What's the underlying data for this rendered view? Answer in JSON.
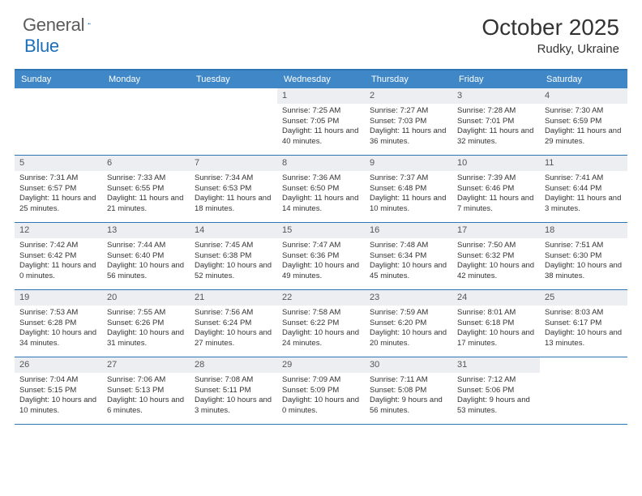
{
  "logo": {
    "text1": "General",
    "text2": "Blue"
  },
  "title": "October 2025",
  "location": "Rudky, Ukraine",
  "colors": {
    "header_bg": "#3f87c7",
    "header_border": "#2d76b6",
    "daynum_bg": "#eceef1",
    "text": "#333333",
    "logo_gray": "#5b5b5b",
    "logo_blue": "#1d6fb8"
  },
  "day_names": [
    "Sunday",
    "Monday",
    "Tuesday",
    "Wednesday",
    "Thursday",
    "Friday",
    "Saturday"
  ],
  "weeks": [
    [
      {
        "empty": true
      },
      {
        "empty": true
      },
      {
        "empty": true
      },
      {
        "day": "1",
        "sunrise": "7:25 AM",
        "sunset": "7:05 PM",
        "daylight": "11 hours and 40 minutes."
      },
      {
        "day": "2",
        "sunrise": "7:27 AM",
        "sunset": "7:03 PM",
        "daylight": "11 hours and 36 minutes."
      },
      {
        "day": "3",
        "sunrise": "7:28 AM",
        "sunset": "7:01 PM",
        "daylight": "11 hours and 32 minutes."
      },
      {
        "day": "4",
        "sunrise": "7:30 AM",
        "sunset": "6:59 PM",
        "daylight": "11 hours and 29 minutes."
      }
    ],
    [
      {
        "day": "5",
        "sunrise": "7:31 AM",
        "sunset": "6:57 PM",
        "daylight": "11 hours and 25 minutes."
      },
      {
        "day": "6",
        "sunrise": "7:33 AM",
        "sunset": "6:55 PM",
        "daylight": "11 hours and 21 minutes."
      },
      {
        "day": "7",
        "sunrise": "7:34 AM",
        "sunset": "6:53 PM",
        "daylight": "11 hours and 18 minutes."
      },
      {
        "day": "8",
        "sunrise": "7:36 AM",
        "sunset": "6:50 PM",
        "daylight": "11 hours and 14 minutes."
      },
      {
        "day": "9",
        "sunrise": "7:37 AM",
        "sunset": "6:48 PM",
        "daylight": "11 hours and 10 minutes."
      },
      {
        "day": "10",
        "sunrise": "7:39 AM",
        "sunset": "6:46 PM",
        "daylight": "11 hours and 7 minutes."
      },
      {
        "day": "11",
        "sunrise": "7:41 AM",
        "sunset": "6:44 PM",
        "daylight": "11 hours and 3 minutes."
      }
    ],
    [
      {
        "day": "12",
        "sunrise": "7:42 AM",
        "sunset": "6:42 PM",
        "daylight": "11 hours and 0 minutes."
      },
      {
        "day": "13",
        "sunrise": "7:44 AM",
        "sunset": "6:40 PM",
        "daylight": "10 hours and 56 minutes."
      },
      {
        "day": "14",
        "sunrise": "7:45 AM",
        "sunset": "6:38 PM",
        "daylight": "10 hours and 52 minutes."
      },
      {
        "day": "15",
        "sunrise": "7:47 AM",
        "sunset": "6:36 PM",
        "daylight": "10 hours and 49 minutes."
      },
      {
        "day": "16",
        "sunrise": "7:48 AM",
        "sunset": "6:34 PM",
        "daylight": "10 hours and 45 minutes."
      },
      {
        "day": "17",
        "sunrise": "7:50 AM",
        "sunset": "6:32 PM",
        "daylight": "10 hours and 42 minutes."
      },
      {
        "day": "18",
        "sunrise": "7:51 AM",
        "sunset": "6:30 PM",
        "daylight": "10 hours and 38 minutes."
      }
    ],
    [
      {
        "day": "19",
        "sunrise": "7:53 AM",
        "sunset": "6:28 PM",
        "daylight": "10 hours and 34 minutes."
      },
      {
        "day": "20",
        "sunrise": "7:55 AM",
        "sunset": "6:26 PM",
        "daylight": "10 hours and 31 minutes."
      },
      {
        "day": "21",
        "sunrise": "7:56 AM",
        "sunset": "6:24 PM",
        "daylight": "10 hours and 27 minutes."
      },
      {
        "day": "22",
        "sunrise": "7:58 AM",
        "sunset": "6:22 PM",
        "daylight": "10 hours and 24 minutes."
      },
      {
        "day": "23",
        "sunrise": "7:59 AM",
        "sunset": "6:20 PM",
        "daylight": "10 hours and 20 minutes."
      },
      {
        "day": "24",
        "sunrise": "8:01 AM",
        "sunset": "6:18 PM",
        "daylight": "10 hours and 17 minutes."
      },
      {
        "day": "25",
        "sunrise": "8:03 AM",
        "sunset": "6:17 PM",
        "daylight": "10 hours and 13 minutes."
      }
    ],
    [
      {
        "day": "26",
        "sunrise": "7:04 AM",
        "sunset": "5:15 PM",
        "daylight": "10 hours and 10 minutes."
      },
      {
        "day": "27",
        "sunrise": "7:06 AM",
        "sunset": "5:13 PM",
        "daylight": "10 hours and 6 minutes."
      },
      {
        "day": "28",
        "sunrise": "7:08 AM",
        "sunset": "5:11 PM",
        "daylight": "10 hours and 3 minutes."
      },
      {
        "day": "29",
        "sunrise": "7:09 AM",
        "sunset": "5:09 PM",
        "daylight": "10 hours and 0 minutes."
      },
      {
        "day": "30",
        "sunrise": "7:11 AM",
        "sunset": "5:08 PM",
        "daylight": "9 hours and 56 minutes."
      },
      {
        "day": "31",
        "sunrise": "7:12 AM",
        "sunset": "5:06 PM",
        "daylight": "9 hours and 53 minutes."
      },
      {
        "empty": true
      }
    ]
  ],
  "labels": {
    "sunrise": "Sunrise:",
    "sunset": "Sunset:",
    "daylight": "Daylight:"
  }
}
